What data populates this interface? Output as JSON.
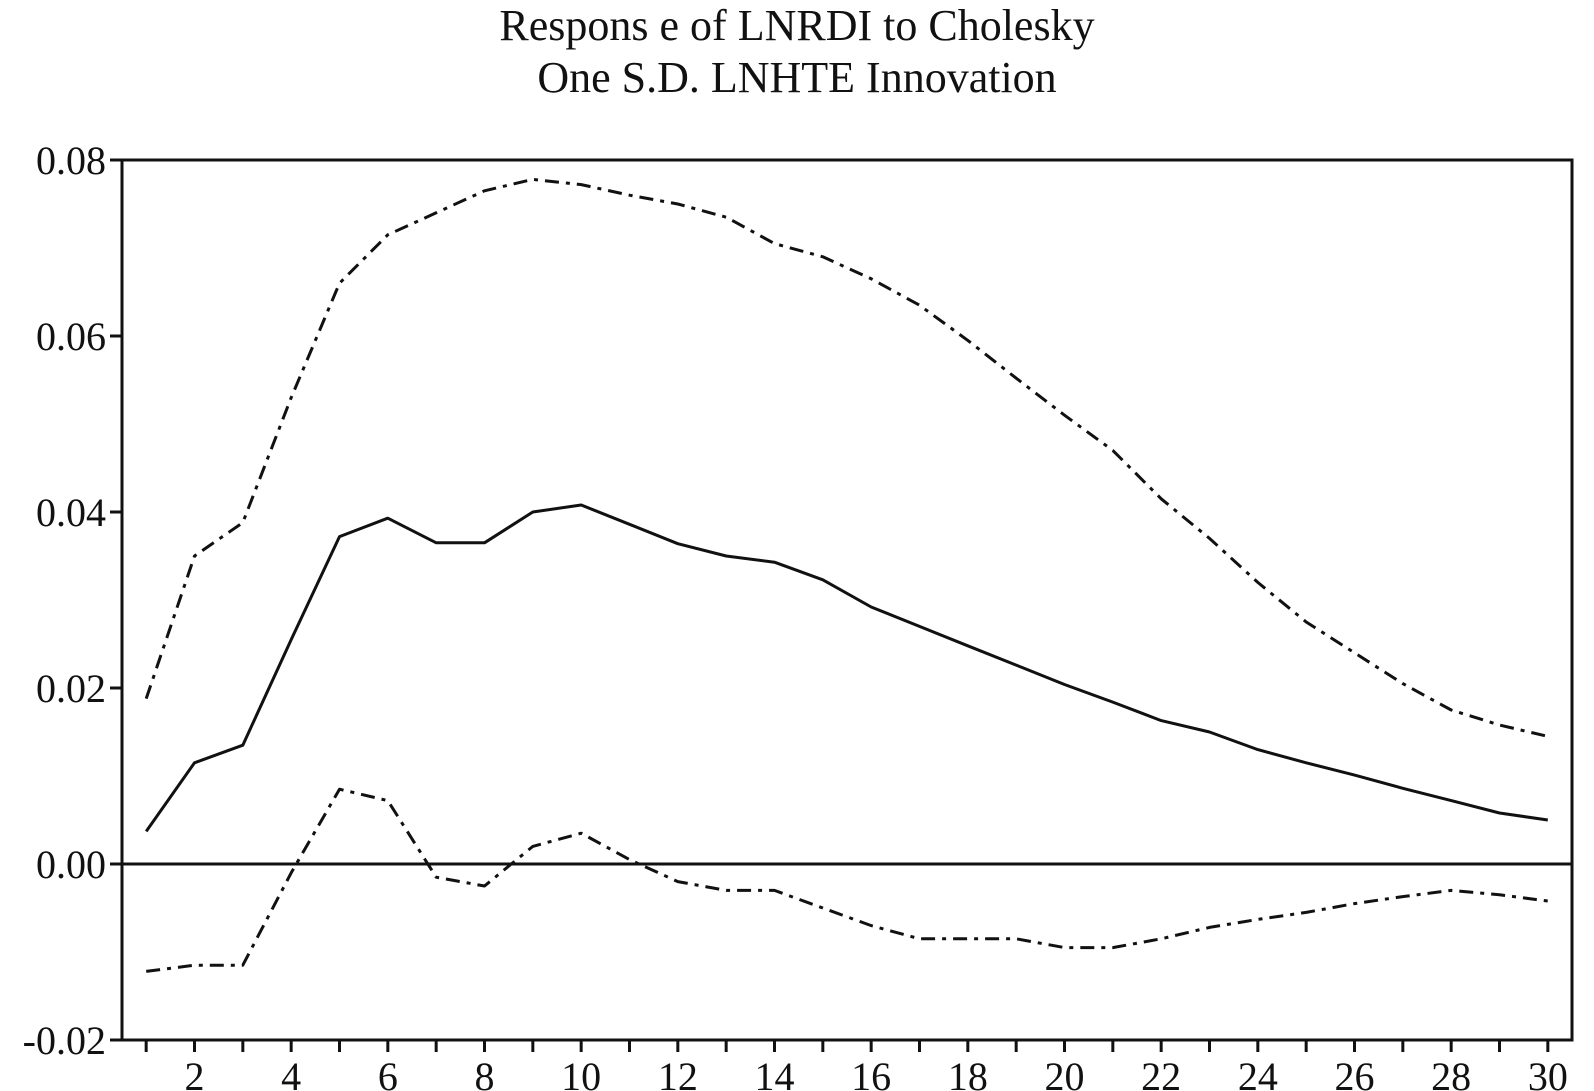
{
  "chart_data": {
    "type": "line",
    "title": "Respons e of LNRDI to Cholesky",
    "subtitle": "One S.D. LNHTE Innovation",
    "xlabel": "",
    "ylabel": "",
    "xlim": [
      0.5,
      30.5
    ],
    "ylim": [
      -0.02,
      0.08
    ],
    "grid": false,
    "y_ticks": [
      -0.02,
      0.0,
      0.02,
      0.04,
      0.06,
      0.08
    ],
    "y_tick_labels": [
      "-0.02",
      "0.00",
      "0.02",
      "0.04",
      "0.06",
      "0.08"
    ],
    "x_ticks": [
      2,
      4,
      6,
      8,
      10,
      12,
      14,
      16,
      18,
      20,
      22,
      24,
      26,
      28,
      30
    ],
    "x_tick_labels": [
      "2",
      "4",
      "6",
      "8",
      "10",
      "12",
      "14",
      "16",
      "18",
      "20",
      "22",
      "24",
      "26",
      "28",
      "30"
    ],
    "zero_line": 0.0,
    "x": [
      1,
      2,
      3,
      4,
      5,
      6,
      7,
      8,
      9,
      10,
      11,
      12,
      13,
      14,
      15,
      16,
      17,
      18,
      19,
      20,
      21,
      22,
      23,
      24,
      25,
      26,
      27,
      28,
      29,
      30
    ],
    "series": [
      {
        "style": "solid",
        "values": [
          0.0037,
          0.0115,
          0.0135,
          0.0255,
          0.0372,
          0.0393,
          0.0365,
          0.0365,
          0.04,
          0.0408,
          0.0386,
          0.0364,
          0.035,
          0.0343,
          0.0323,
          0.0292,
          0.027,
          0.0248,
          0.0226,
          0.0204,
          0.0184,
          0.0163,
          0.015,
          0.013,
          0.0115,
          0.0101,
          0.0086,
          0.0072,
          0.0058,
          0.005
        ]
      },
      {
        "style": "dashed",
        "values": [
          0.0188,
          0.035,
          0.0388,
          0.053,
          0.066,
          0.0715,
          0.074,
          0.0765,
          0.0778,
          0.0772,
          0.076,
          0.075,
          0.0735,
          0.0705,
          0.069,
          0.0665,
          0.0635,
          0.0595,
          0.0552,
          0.051,
          0.047,
          0.0415,
          0.037,
          0.032,
          0.0275,
          0.024,
          0.0205,
          0.0175,
          0.0158,
          0.0145
        ]
      },
      {
        "style": "dashed",
        "values": [
          -0.0122,
          -0.0115,
          -0.0115,
          -0.001,
          0.0085,
          0.0072,
          -0.0015,
          -0.0025,
          0.002,
          0.0035,
          0.0005,
          -0.002,
          -0.003,
          -0.003,
          -0.005,
          -0.007,
          -0.0085,
          -0.0085,
          -0.0085,
          -0.0095,
          -0.0095,
          -0.0085,
          -0.0072,
          -0.0063,
          -0.0055,
          -0.0045,
          -0.0037,
          -0.003,
          -0.0035,
          -0.0042
        ]
      }
    ]
  }
}
